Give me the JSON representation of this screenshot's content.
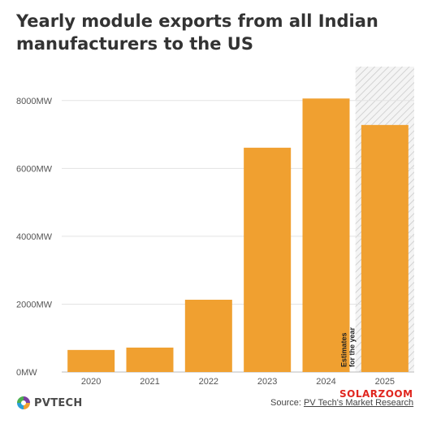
{
  "title": "Yearly module exports from all Indian manufacturers to the US",
  "chart_data": {
    "type": "bar",
    "categories": [
      "2020",
      "2021",
      "2022",
      "2023",
      "2024",
      "2025"
    ],
    "values": [
      650,
      720,
      2130,
      6610,
      8060,
      7280
    ],
    "unit": "MW",
    "ylim": [
      0,
      9000
    ],
    "yticks": [
      0,
      2000,
      4000,
      6000,
      8000
    ],
    "ytick_labels": [
      "0MW",
      "2000MW",
      "4000MW",
      "6000MW",
      "8000MW"
    ],
    "grid": true,
    "bar_color": "#f0a030",
    "estimate_category": "2025",
    "estimate_note": [
      "Estimates",
      "for the year"
    ]
  },
  "footer": {
    "logo": "PVTECH",
    "source_prefix": "Source: ",
    "source_link": "PV Tech's Market Research"
  },
  "watermark": "SOLARZOOM"
}
